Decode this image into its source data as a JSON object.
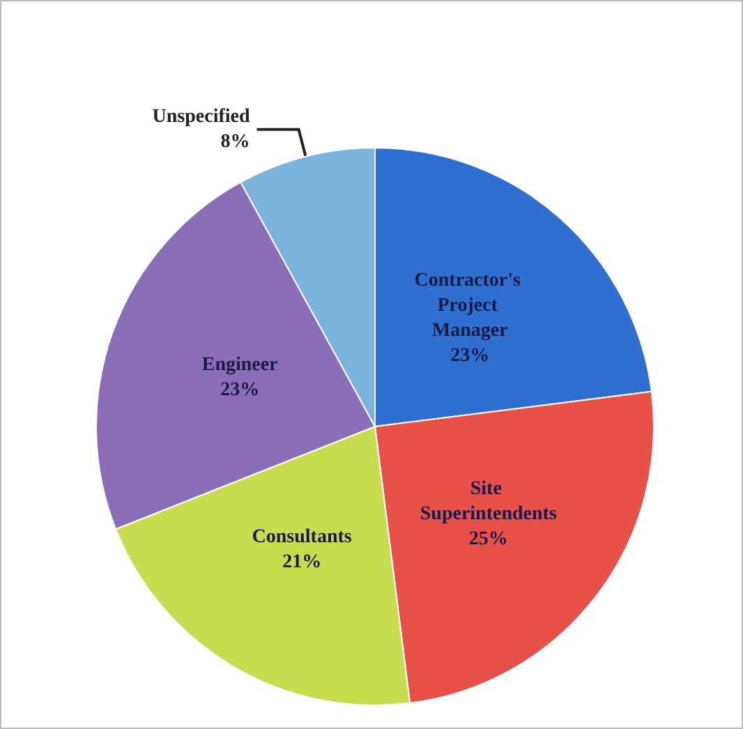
{
  "chart_data": {
    "type": "pie",
    "categories": [
      "Contractor's Project Manager",
      "Site Superintendents",
      "Consultants",
      "Engineer",
      "Unspecified"
    ],
    "values": [
      23,
      25,
      21,
      23,
      8
    ],
    "value_labels": [
      "23%",
      "25%",
      "21%",
      "23%",
      "8%"
    ],
    "colors": [
      "#2f6fd0",
      "#e8504a",
      "#c8dc50",
      "#8a6fb8",
      "#7ab4dc"
    ]
  }
}
